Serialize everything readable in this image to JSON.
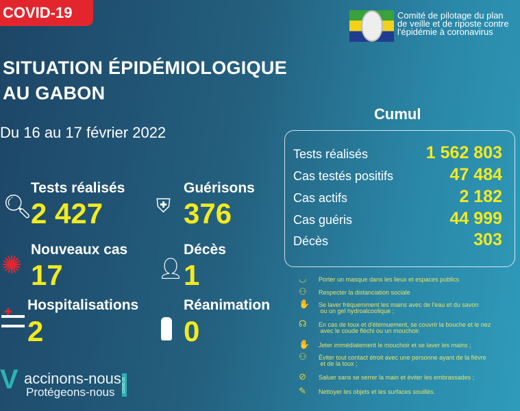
{
  "banner": "COVID-19",
  "title_line1": "SITUATION ÉPIDÉMIOLOGIQUE",
  "title_line2": "AU GABON",
  "date": "Du 16 au 17 février 2022",
  "org": {
    "line1": "Comité de pilotage du plan",
    "line2": "de veille et de riposte contre",
    "line3": "l'épidémie à coronavirus"
  },
  "daily": [
    {
      "label": "Tests réalisés",
      "value": "2 427",
      "icon": "magnifier-icon"
    },
    {
      "label": "Guérisons",
      "value": "376",
      "icon": "shield-cross-icon"
    },
    {
      "label": "Nouveaux cas",
      "value": "17",
      "icon": "virus-icon"
    },
    {
      "label": "Décès",
      "value": "1",
      "icon": "person-cross-icon"
    },
    {
      "label": "Hospitalisations",
      "value": "2",
      "icon": "hospital-bed-icon"
    },
    {
      "label": "Réanimation",
      "value": "0",
      "icon": "oxygen-tank-icon"
    }
  ],
  "cumul": {
    "title": "Cumul",
    "rows": [
      {
        "label": "Tests réalisés",
        "value": "1 562 803"
      },
      {
        "label": "Cas testés positifs",
        "value": "47 484"
      },
      {
        "label": "Cas actifs",
        "value": "2 182"
      },
      {
        "label": "Cas guéris",
        "value": "44 999"
      },
      {
        "label": "Décès",
        "value": "303"
      }
    ]
  },
  "tips": [
    "Porter un masque dans les lieux et espaces publics",
    "Respecter la distanciation sociale",
    "Se laver fréquemment les mains avec de l'eau et du savon\n ou un gel hydroalcoolique ;",
    "En cas de toux et d'éternuement, se couvrir la bouche et le nez\n avec le coude fléchi ou un mouchoir.",
    "Jeter immédiatement le mouchoir et se laver les mains ;",
    "Éviter tout contact étroit avec une personne ayant de la fièvre\n et de la toux ;",
    "Saluer sans se serrer la main et éviter les embrassades ;",
    "Nettoyer les objets et les surfaces souillés."
  ],
  "vaccine": {
    "line1": "accinons-nous",
    "line2": "Protégeons-nous",
    "tag": "COVID-19"
  },
  "colors": {
    "accent": "#f3ea1f",
    "banner": "#e3262d"
  }
}
